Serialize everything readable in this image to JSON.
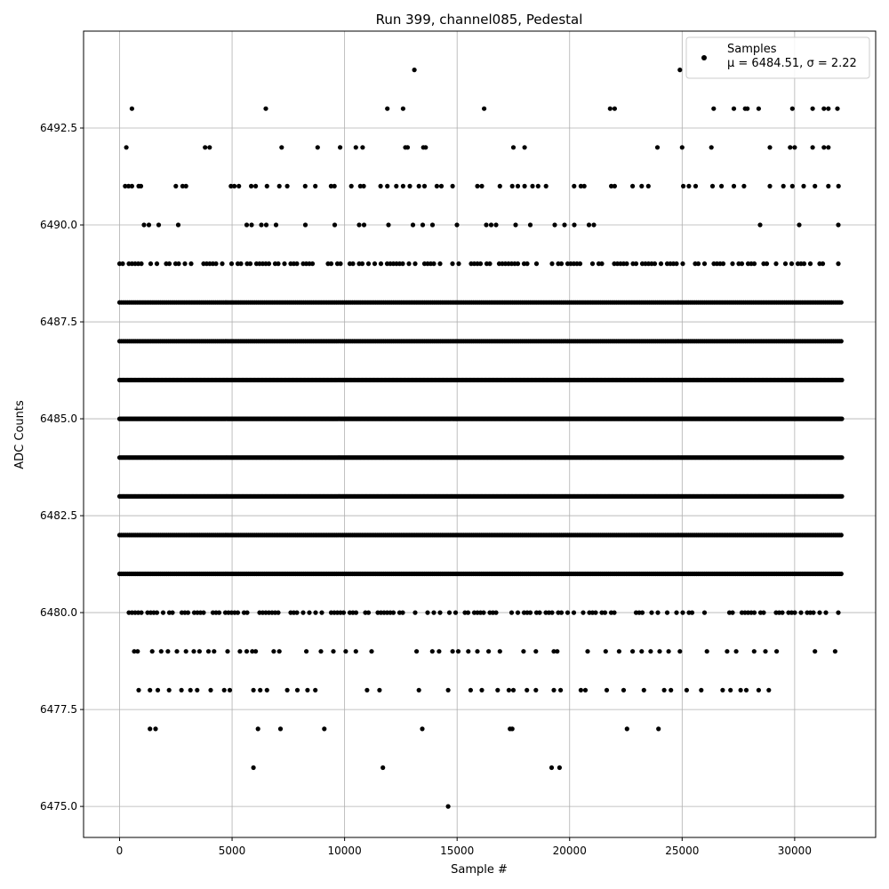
{
  "chart_data": {
    "type": "scatter",
    "title": "Run 399, channel085, Pedestal",
    "xlabel": "Sample #",
    "ylabel": "ADC Counts",
    "xlim": [
      -1600,
      33600
    ],
    "ylim": [
      6474.2,
      6495.0
    ],
    "x_ticks": [
      0,
      5000,
      10000,
      15000,
      20000,
      25000,
      30000
    ],
    "x_tick_labels": [
      "0",
      "5000",
      "10000",
      "15000",
      "20000",
      "25000",
      "30000"
    ],
    "y_ticks": [
      6475.0,
      6477.5,
      6480.0,
      6482.5,
      6485.0,
      6487.5,
      6490.0,
      6492.5
    ],
    "y_tick_labels": [
      "6475.0",
      "6477.5",
      "6480.0",
      "6482.5",
      "6485.0",
      "6487.5",
      "6490.0",
      "6492.5"
    ],
    "grid": true,
    "legend_position": "top-right",
    "marker_color": "#000000",
    "series": [
      {
        "name": "Samples",
        "label_line2": "μ = 6484.51, σ = 2.22",
        "mean": 6484.51,
        "sigma": 2.22,
        "x_range": [
          0,
          32100
        ],
        "dense_levels": [
          6480,
          6481,
          6482,
          6483,
          6484,
          6485,
          6486,
          6487,
          6488,
          6489,
          6490
        ],
        "sparse_points": [
          [
            6494,
            13100
          ],
          [
            6494,
            24900
          ],
          [
            6493,
            550
          ],
          [
            6493,
            6500
          ],
          [
            6493,
            11900
          ],
          [
            6493,
            12600
          ],
          [
            6493,
            16200
          ],
          [
            6493,
            21800
          ],
          [
            6493,
            22000
          ],
          [
            6493,
            26400
          ],
          [
            6493,
            27300
          ],
          [
            6493,
            27800
          ],
          [
            6493,
            27900
          ],
          [
            6493,
            28400
          ],
          [
            6493,
            29900
          ],
          [
            6493,
            30800
          ],
          [
            6493,
            31300
          ],
          [
            6493,
            31500
          ],
          [
            6493,
            31900
          ],
          [
            6492,
            300
          ],
          [
            6492,
            3800
          ],
          [
            6492,
            4000
          ],
          [
            6492,
            7200
          ],
          [
            6492,
            8800
          ],
          [
            6492,
            9800
          ],
          [
            6492,
            10500
          ],
          [
            6492,
            10800
          ],
          [
            6492,
            12700
          ],
          [
            6492,
            12800
          ],
          [
            6492,
            13500
          ],
          [
            6492,
            13600
          ],
          [
            6492,
            17500
          ],
          [
            6492,
            18000
          ],
          [
            6492,
            23900
          ],
          [
            6492,
            25000
          ],
          [
            6492,
            26300
          ],
          [
            6492,
            28900
          ],
          [
            6492,
            29800
          ],
          [
            6492,
            30000
          ],
          [
            6492,
            30800
          ],
          [
            6492,
            31300
          ],
          [
            6492,
            31500
          ],
          [
            6491,
            250
          ],
          [
            6491,
            400
          ],
          [
            6491,
            550
          ],
          [
            6491,
            850
          ],
          [
            6491,
            950
          ],
          [
            6491,
            2500
          ],
          [
            6491,
            2800
          ],
          [
            6491,
            2950
          ],
          [
            6491,
            4950
          ],
          [
            6491,
            5100
          ],
          [
            6491,
            5300
          ],
          [
            6491,
            5850
          ],
          [
            6491,
            6050
          ],
          [
            6491,
            6550
          ],
          [
            6491,
            7100
          ],
          [
            6491,
            7450
          ],
          [
            6491,
            8250
          ],
          [
            6491,
            8700
          ],
          [
            6491,
            9400
          ],
          [
            6491,
            9550
          ],
          [
            6491,
            10300
          ],
          [
            6491,
            10700
          ],
          [
            6491,
            10850
          ],
          [
            6491,
            11600
          ],
          [
            6491,
            11900
          ],
          [
            6491,
            12300
          ],
          [
            6491,
            12600
          ],
          [
            6491,
            12900
          ],
          [
            6491,
            13300
          ],
          [
            6491,
            13550
          ],
          [
            6491,
            14100
          ],
          [
            6491,
            14300
          ],
          [
            6491,
            14800
          ],
          [
            6491,
            15900
          ],
          [
            6491,
            16100
          ],
          [
            6491,
            16900
          ],
          [
            6491,
            17450
          ],
          [
            6491,
            17700
          ],
          [
            6491,
            18000
          ],
          [
            6491,
            18350
          ],
          [
            6491,
            18600
          ],
          [
            6491,
            18950
          ],
          [
            6491,
            20200
          ],
          [
            6491,
            20500
          ],
          [
            6491,
            20650
          ],
          [
            6491,
            21850
          ],
          [
            6491,
            22000
          ],
          [
            6491,
            22800
          ],
          [
            6491,
            23200
          ],
          [
            6491,
            23500
          ],
          [
            6491,
            25050
          ],
          [
            6491,
            25300
          ],
          [
            6491,
            25600
          ],
          [
            6491,
            26350
          ],
          [
            6491,
            26750
          ],
          [
            6491,
            27300
          ],
          [
            6491,
            27750
          ],
          [
            6491,
            28900
          ],
          [
            6491,
            29500
          ],
          [
            6491,
            29900
          ],
          [
            6491,
            30400
          ],
          [
            6491,
            30900
          ],
          [
            6491,
            31500
          ],
          [
            6491,
            31950
          ],
          [
            6479,
            650
          ],
          [
            6479,
            800
          ],
          [
            6479,
            1450
          ],
          [
            6479,
            1850
          ],
          [
            6479,
            2150
          ],
          [
            6479,
            2550
          ],
          [
            6479,
            2950
          ],
          [
            6479,
            3300
          ],
          [
            6479,
            3550
          ],
          [
            6479,
            3950
          ],
          [
            6479,
            4200
          ],
          [
            6479,
            4800
          ],
          [
            6479,
            5350
          ],
          [
            6479,
            5650
          ],
          [
            6479,
            5900
          ],
          [
            6479,
            6050
          ],
          [
            6479,
            6850
          ],
          [
            6479,
            7100
          ],
          [
            6479,
            8300
          ],
          [
            6479,
            8950
          ],
          [
            6479,
            9500
          ],
          [
            6479,
            10050
          ],
          [
            6479,
            10500
          ],
          [
            6479,
            11200
          ],
          [
            6479,
            13200
          ],
          [
            6479,
            13900
          ],
          [
            6479,
            14200
          ],
          [
            6479,
            14800
          ],
          [
            6479,
            15050
          ],
          [
            6479,
            15500
          ],
          [
            6479,
            15900
          ],
          [
            6479,
            16400
          ],
          [
            6479,
            16900
          ],
          [
            6479,
            17950
          ],
          [
            6479,
            18500
          ],
          [
            6479,
            19300
          ],
          [
            6479,
            19450
          ],
          [
            6479,
            20800
          ],
          [
            6479,
            21600
          ],
          [
            6479,
            22200
          ],
          [
            6479,
            22800
          ],
          [
            6479,
            23200
          ],
          [
            6479,
            23600
          ],
          [
            6479,
            24000
          ],
          [
            6479,
            24400
          ],
          [
            6479,
            24900
          ],
          [
            6479,
            26100
          ],
          [
            6479,
            27000
          ],
          [
            6479,
            27400
          ],
          [
            6479,
            28200
          ],
          [
            6479,
            28700
          ],
          [
            6479,
            29200
          ],
          [
            6479,
            30900
          ],
          [
            6479,
            31800
          ],
          [
            6478,
            850
          ],
          [
            6478,
            1350
          ],
          [
            6478,
            1700
          ],
          [
            6478,
            2200
          ],
          [
            6478,
            2750
          ],
          [
            6478,
            3150
          ],
          [
            6478,
            3450
          ],
          [
            6478,
            4050
          ],
          [
            6478,
            4650
          ],
          [
            6478,
            4900
          ],
          [
            6478,
            5950
          ],
          [
            6478,
            6250
          ],
          [
            6478,
            6550
          ],
          [
            6478,
            7450
          ],
          [
            6478,
            7900
          ],
          [
            6478,
            8350
          ],
          [
            6478,
            8700
          ],
          [
            6478,
            11000
          ],
          [
            6478,
            11550
          ],
          [
            6478,
            13300
          ],
          [
            6478,
            14600
          ],
          [
            6478,
            15600
          ],
          [
            6478,
            16100
          ],
          [
            6478,
            16800
          ],
          [
            6478,
            17300
          ],
          [
            6478,
            17500
          ],
          [
            6478,
            18100
          ],
          [
            6478,
            18500
          ],
          [
            6478,
            19300
          ],
          [
            6478,
            19600
          ],
          [
            6478,
            20500
          ],
          [
            6478,
            20700
          ],
          [
            6478,
            21650
          ],
          [
            6478,
            22400
          ],
          [
            6478,
            23300
          ],
          [
            6478,
            24200
          ],
          [
            6478,
            24500
          ],
          [
            6478,
            25200
          ],
          [
            6478,
            25850
          ],
          [
            6478,
            26800
          ],
          [
            6478,
            27150
          ],
          [
            6478,
            27600
          ],
          [
            6478,
            27850
          ],
          [
            6478,
            28400
          ],
          [
            6478,
            28850
          ],
          [
            6477,
            1350
          ],
          [
            6477,
            1600
          ],
          [
            6477,
            6150
          ],
          [
            6477,
            7150
          ],
          [
            6477,
            9100
          ],
          [
            6477,
            13450
          ],
          [
            6477,
            17350
          ],
          [
            6477,
            17450
          ],
          [
            6477,
            22550
          ],
          [
            6477,
            23950
          ],
          [
            6476,
            5950
          ],
          [
            6476,
            11700
          ],
          [
            6476,
            19200
          ],
          [
            6476,
            19550
          ],
          [
            6475,
            14600
          ]
        ]
      }
    ]
  }
}
